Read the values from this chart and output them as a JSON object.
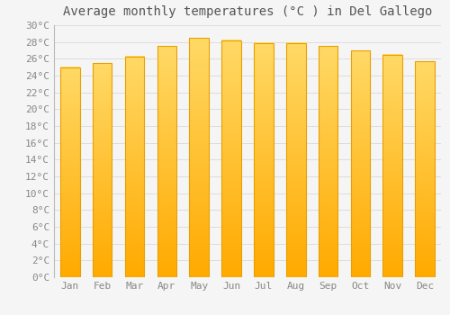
{
  "title": "Average monthly temperatures (°C ) in Del Gallego",
  "months": [
    "Jan",
    "Feb",
    "Mar",
    "Apr",
    "May",
    "Jun",
    "Jul",
    "Aug",
    "Sep",
    "Oct",
    "Nov",
    "Dec"
  ],
  "values": [
    25.0,
    25.5,
    26.3,
    27.5,
    28.5,
    28.2,
    27.9,
    27.9,
    27.5,
    27.0,
    26.5,
    25.7
  ],
  "bar_color_bottom": "#FFAA00",
  "bar_color_top": "#FFD966",
  "bar_edge_color": "#E8A000",
  "ylim": [
    0,
    30
  ],
  "ytick_step": 2,
  "background_color": "#f5f5f5",
  "plot_bg_color": "#f5f5f5",
  "grid_color": "#dddddd",
  "title_fontsize": 10,
  "tick_fontsize": 8,
  "tick_color": "#888888",
  "title_color": "#555555",
  "font_family": "monospace",
  "bar_width": 0.6
}
